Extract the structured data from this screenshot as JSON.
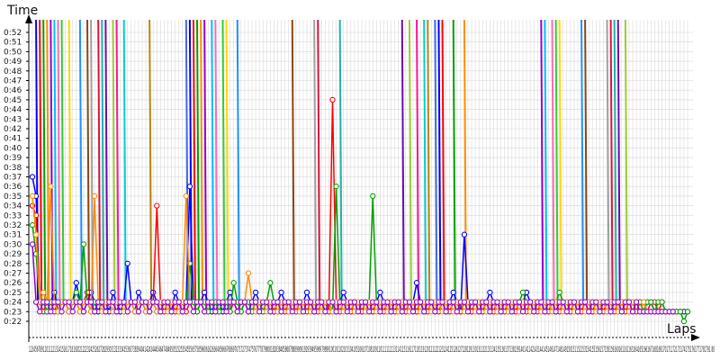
{
  "chart_data": {
    "type": "line",
    "title": "",
    "xlabel": "Laps",
    "ylabel": "Time",
    "xlim": [
      1,
      180
    ],
    "ylim": [
      0.22,
      0.53
    ],
    "y_ticks": [
      "0:22",
      "0:23",
      "0:24",
      "0:25",
      "0:26",
      "0:27",
      "0:28",
      "0:29",
      "0:30",
      "0:31",
      "0:32",
      "0:33",
      "0:34",
      "0:35",
      "0:36",
      "0:37",
      "0:38",
      "0:39",
      "0:40",
      "0:41",
      "0:42",
      "0:43",
      "0:44",
      "0:45",
      "0:46",
      "0:47",
      "0:48",
      "0:49",
      "0:50",
      "0:51",
      "0:52"
    ],
    "x_tick_text": "12345678911011121314151617181920212223242526272829303132333435363738394041424344454647484950515253545556575859606162636465666768697071727374757677787980818283848586878889909192939495969798991001011021031041051061071081091101111121131141151161171181191201211221231241251261271281291301311321331341351361371381391401411421431441451461471481491501511521531541551561571581591601611621631641651661671681691701711721731741751761771781791 80",
    "grid": true,
    "series_colors": [
      "#0000ff",
      "#ff0000",
      "#00a000",
      "#ff8c00",
      "#9400d3",
      "#00bfff",
      "#ff69b4",
      "#32cd32",
      "#ffd700",
      "#1e90ff",
      "#8b4513",
      "#a0a0a0",
      "#dc143c",
      "#20b2aa",
      "#6a0dad",
      "#9acd32",
      "#ff1493",
      "#00ced1",
      "#b8860b",
      "#4169e1"
    ],
    "series": [
      {
        "values": [
          0.37,
          0.35,
          0.24,
          0.24,
          0.23,
          0.24,
          0.25,
          0.23,
          0.24,
          0.24,
          0.23,
          0.24,
          0.26,
          0.24,
          0.23,
          0.24,
          0.25,
          0.24,
          0.23,
          0.24,
          0.24,
          0.23,
          0.25,
          0.24,
          0.23,
          0.24,
          0.28,
          0.24,
          0.23,
          0.25,
          0.24,
          0.23,
          0.24,
          0.25,
          0.24,
          0.23,
          0.24,
          0.24,
          0.23,
          0.25,
          0.24,
          0.23,
          0.24,
          0.36,
          0.24,
          0.23,
          0.24,
          0.25,
          0.24,
          0.23,
          0.24,
          0.24,
          0.23,
          0.24,
          0.25,
          0.24,
          0.23,
          0.24,
          0.24,
          0.23,
          0.24,
          0.25,
          0.24,
          0.23,
          0.24,
          0.24,
          0.23,
          0.24,
          0.25,
          0.24,
          0.23,
          0.24,
          0.24,
          0.23,
          0.24,
          0.25,
          0.24,
          0.23,
          0.24,
          0.24,
          0.23,
          0.24,
          0.24,
          0.23,
          0.24,
          0.25,
          0.24,
          0.23,
          0.24,
          0.24,
          0.23,
          0.24,
          0.24,
          0.23,
          0.24,
          0.25,
          0.24,
          0.23,
          0.24,
          0.24,
          0.23,
          0.24,
          0.24,
          0.23,
          0.24,
          0.26,
          0.24,
          0.23,
          0.24,
          0.24,
          0.23,
          0.24,
          0.24,
          0.23,
          0.24,
          0.25,
          0.24,
          0.23,
          0.31,
          0.24,
          0.23,
          0.24,
          0.24,
          0.23,
          0.24,
          0.25,
          0.24,
          0.23,
          0.24,
          0.24,
          0.23,
          0.24,
          0.24,
          0.23,
          0.24,
          0.25,
          0.24,
          0.23,
          0.24,
          0.24,
          0.23,
          0.24,
          0.24,
          0.23,
          0.24,
          0.24,
          0.24,
          0.23,
          0.24,
          0.24,
          0.23,
          0.24,
          0.24,
          0.23,
          0.24,
          0.24,
          0.24,
          0.23,
          0.24,
          0.24,
          0.23,
          0.24,
          0.24,
          0.23,
          0.24,
          0.24,
          0.24,
          0.23,
          0.24,
          0.24,
          0.23,
          0.23,
          0.23,
          0.23,
          0.23,
          0.23,
          0.23,
          0.23,
          0.23,
          0.23
        ]
      },
      {
        "values": [
          0.34,
          0.33,
          0.24,
          0.23,
          0.24,
          0.24,
          0.23,
          0.24,
          0.24,
          0.24,
          0.23,
          0.24,
          0.24,
          0.23,
          0.24,
          0.25,
          0.24,
          0.23,
          0.24,
          0.24,
          0.23,
          0.24,
          0.24,
          0.23,
          0.24,
          0.24,
          0.23,
          0.24,
          0.24,
          0.23,
          0.24,
          0.24,
          0.23,
          0.24,
          0.34,
          0.24,
          0.23,
          0.24,
          0.24,
          0.23,
          0.24,
          0.24,
          0.23,
          0.24,
          0.24,
          0.23,
          0.24,
          0.24,
          0.23,
          0.24,
          0.24,
          0.23,
          0.24,
          0.24,
          0.23,
          0.24,
          0.24,
          0.23,
          0.24,
          0.24,
          0.23,
          0.24,
          0.24,
          0.23,
          0.24,
          0.24,
          0.23,
          0.24,
          0.24,
          0.23,
          0.24,
          0.24,
          0.23,
          0.24,
          0.24,
          0.23,
          0.24,
          0.24,
          0.23,
          0.24,
          0.24,
          0.23,
          0.45,
          0.24,
          0.23,
          0.24,
          0.24,
          0.23,
          0.24,
          0.24,
          0.23,
          0.24,
          0.24,
          0.23,
          0.24,
          0.24,
          0.23,
          0.24,
          0.24,
          0.23,
          0.24,
          0.24,
          0.23,
          0.24,
          0.24,
          0.23,
          0.24,
          0.24,
          0.23,
          0.24,
          0.24,
          0.23,
          0.24,
          0.24,
          0.23,
          0.24,
          0.24,
          0.23,
          0.24,
          0.24,
          0.23,
          0.24,
          0.24,
          0.23,
          0.24,
          0.24,
          0.23,
          0.24,
          0.24,
          0.23,
          0.24,
          0.24,
          0.23,
          0.24,
          0.24,
          0.23,
          0.24,
          0.24,
          0.23,
          0.24,
          0.24,
          0.23,
          0.24,
          0.24,
          0.23,
          0.24,
          0.24,
          0.23,
          0.24,
          0.24,
          0.23,
          0.24,
          0.24,
          0.23,
          0.24,
          0.24,
          0.23,
          0.24,
          0.24,
          0.23,
          0.24,
          0.24,
          0.23,
          0.24,
          0.24,
          0.23,
          0.24,
          0.24,
          0.23,
          0.24,
          0.24,
          0.23,
          0.24,
          0.23,
          0.23,
          0.23,
          0.23,
          0.23
        ]
      },
      {
        "values": [
          0.32,
          0.29,
          0.24,
          0.24,
          0.23,
          0.24,
          0.24,
          0.23,
          0.24,
          0.24,
          0.23,
          0.24,
          0.25,
          0.24,
          0.3,
          0.24,
          0.23,
          0.24,
          0.24,
          0.23,
          0.24,
          0.24,
          0.23,
          0.24,
          0.24,
          0.23,
          0.24,
          0.24,
          0.23,
          0.24,
          0.24,
          0.23,
          0.24,
          0.24,
          0.23,
          0.24,
          0.24,
          0.23,
          0.24,
          0.24,
          0.23,
          0.24,
          0.24,
          0.28,
          0.24,
          0.23,
          0.24,
          0.24,
          0.23,
          0.24,
          0.24,
          0.23,
          0.24,
          0.24,
          0.23,
          0.26,
          0.24,
          0.23,
          0.24,
          0.24,
          0.23,
          0.24,
          0.24,
          0.23,
          0.24,
          0.26,
          0.24,
          0.23,
          0.24,
          0.24,
          0.23,
          0.24,
          0.24,
          0.23,
          0.24,
          0.24,
          0.23,
          0.24,
          0.24,
          0.23,
          0.24,
          0.24,
          0.23,
          0.36,
          0.24,
          0.23,
          0.24,
          0.24,
          0.23,
          0.24,
          0.24,
          0.23,
          0.24,
          0.35,
          0.24,
          0.23,
          0.24,
          0.24,
          0.23,
          0.24,
          0.24,
          0.23,
          0.24,
          0.24,
          0.23,
          0.24,
          0.24,
          0.23,
          0.24,
          0.24,
          0.23,
          0.24,
          0.24,
          0.23,
          0.24,
          0.24,
          0.23,
          0.24,
          0.24,
          0.23,
          0.24,
          0.24,
          0.23,
          0.24,
          0.24,
          0.23,
          0.24,
          0.24,
          0.23,
          0.24,
          0.24,
          0.23,
          0.24,
          0.24,
          0.25,
          0.24,
          0.23,
          0.24,
          0.24,
          0.23,
          0.24,
          0.24,
          0.23,
          0.24,
          0.25,
          0.24,
          0.23,
          0.24,
          0.24,
          0.23,
          0.24,
          0.24,
          0.23,
          0.24,
          0.24,
          0.23,
          0.24,
          0.24,
          0.23,
          0.24,
          0.24,
          0.23,
          0.24,
          0.24,
          0.23,
          0.24,
          0.24,
          0.23,
          0.24,
          0.24,
          0.23,
          0.24,
          0.24,
          0.23,
          0.23,
          0.23,
          0.23,
          0.23,
          0.22,
          0.23
        ]
      },
      {
        "values": [
          0.35,
          0.31,
          0.24,
          0.25,
          0.24,
          0.36,
          0.24,
          0.23,
          0.24,
          0.24,
          0.23,
          0.24,
          0.24,
          0.23,
          0.24,
          0.24,
          0.23,
          0.35,
          0.24,
          0.23,
          0.24,
          0.24,
          0.23,
          0.24,
          0.24,
          0.23,
          0.24,
          0.24,
          0.23,
          0.24,
          0.24,
          0.23,
          0.24,
          0.24,
          0.23,
          0.24,
          0.24,
          0.23,
          0.24,
          0.24,
          0.23,
          0.24,
          0.35,
          0.24,
          0.23,
          0.24,
          0.24,
          0.23,
          0.24,
          0.24,
          0.23,
          0.24,
          0.24,
          0.23,
          0.24,
          0.24,
          0.23,
          0.24,
          0.24,
          0.27,
          0.24,
          0.23,
          0.24,
          0.24,
          0.23,
          0.24,
          0.24,
          0.23,
          0.24,
          0.24,
          0.23,
          0.24,
          0.24,
          0.23,
          0.24,
          0.24,
          0.23,
          0.24,
          0.24,
          0.23,
          0.24,
          0.24,
          0.23,
          0.24,
          0.24,
          0.23,
          0.24,
          0.24,
          0.23,
          0.24,
          0.24,
          0.23,
          0.24,
          0.24,
          0.23,
          0.24,
          0.24,
          0.23,
          0.24,
          0.24,
          0.23,
          0.24,
          0.24,
          0.23,
          0.24,
          0.24,
          0.23,
          0.24,
          0.24,
          0.23,
          0.24,
          0.24,
          0.23,
          0.24,
          0.24,
          0.23,
          0.24,
          0.24,
          0.23,
          0.24,
          0.24,
          0.23,
          0.24,
          0.24,
          0.23,
          0.24,
          0.24,
          0.23,
          0.24,
          0.24,
          0.23,
          0.24,
          0.24,
          0.23,
          0.24,
          0.24,
          0.23,
          0.24,
          0.24,
          0.23,
          0.24,
          0.24,
          0.23,
          0.24,
          0.24,
          0.23,
          0.24,
          0.24,
          0.23,
          0.24,
          0.24,
          0.23,
          0.24,
          0.24,
          0.23,
          0.24,
          0.24,
          0.23,
          0.24,
          0.24,
          0.23,
          0.24,
          0.24,
          0.23,
          0.24,
          0.24,
          0.23,
          0.24,
          0.23,
          0.23,
          0.23,
          0.23,
          0.23,
          0.23,
          0.23,
          0.23
        ]
      },
      {
        "values": [
          0.3,
          0.24,
          0.23,
          0.24,
          0.24,
          0.23,
          0.24,
          0.24,
          0.23,
          0.24,
          0.24,
          0.23,
          0.24,
          0.24,
          0.23,
          0.24,
          0.24,
          0.23,
          0.24,
          0.24,
          0.23,
          0.24,
          0.24,
          0.23,
          0.24,
          0.24,
          0.23,
          0.24,
          0.24,
          0.23,
          0.24,
          0.24,
          0.23,
          0.24,
          0.24,
          0.23,
          0.24,
          0.24,
          0.23,
          0.24,
          0.24,
          0.23,
          0.24,
          0.24,
          0.23,
          0.24,
          0.24,
          0.23,
          0.24,
          0.24,
          0.23,
          0.24,
          0.24,
          0.23,
          0.24,
          0.24,
          0.23,
          0.24,
          0.24,
          0.23,
          0.24,
          0.24,
          0.23,
          0.24,
          0.24,
          0.23,
          0.24,
          0.24,
          0.23,
          0.24,
          0.24,
          0.23,
          0.24,
          0.24,
          0.23,
          0.24,
          0.24,
          0.23,
          0.24,
          0.24,
          0.23,
          0.24,
          0.24,
          0.23,
          0.24,
          0.24,
          0.23,
          0.24,
          0.24,
          0.23,
          0.24,
          0.24,
          0.23,
          0.24,
          0.24,
          0.23,
          0.24,
          0.24,
          0.23,
          0.24,
          0.24,
          0.23,
          0.24,
          0.24,
          0.23,
          0.24,
          0.24,
          0.23,
          0.24,
          0.24,
          0.23,
          0.24,
          0.24,
          0.23,
          0.24,
          0.24,
          0.23,
          0.24,
          0.24,
          0.23,
          0.24,
          0.24,
          0.23,
          0.24,
          0.24,
          0.23,
          0.24,
          0.24,
          0.23,
          0.24,
          0.24,
          0.23,
          0.24,
          0.24,
          0.23,
          0.24,
          0.24,
          0.23,
          0.24,
          0.24,
          0.23,
          0.24,
          0.24,
          0.23,
          0.24,
          0.24,
          0.23,
          0.24,
          0.24,
          0.23,
          0.24,
          0.24,
          0.23,
          0.24,
          0.24,
          0.23,
          0.24,
          0.24,
          0.23,
          0.24,
          0.24,
          0.23,
          0.24,
          0.24,
          0.23,
          0.24,
          0.23,
          0.23,
          0.23,
          0.23,
          0.23,
          0.23,
          0.23,
          0.23,
          0.23,
          0.23
        ]
      }
    ]
  }
}
